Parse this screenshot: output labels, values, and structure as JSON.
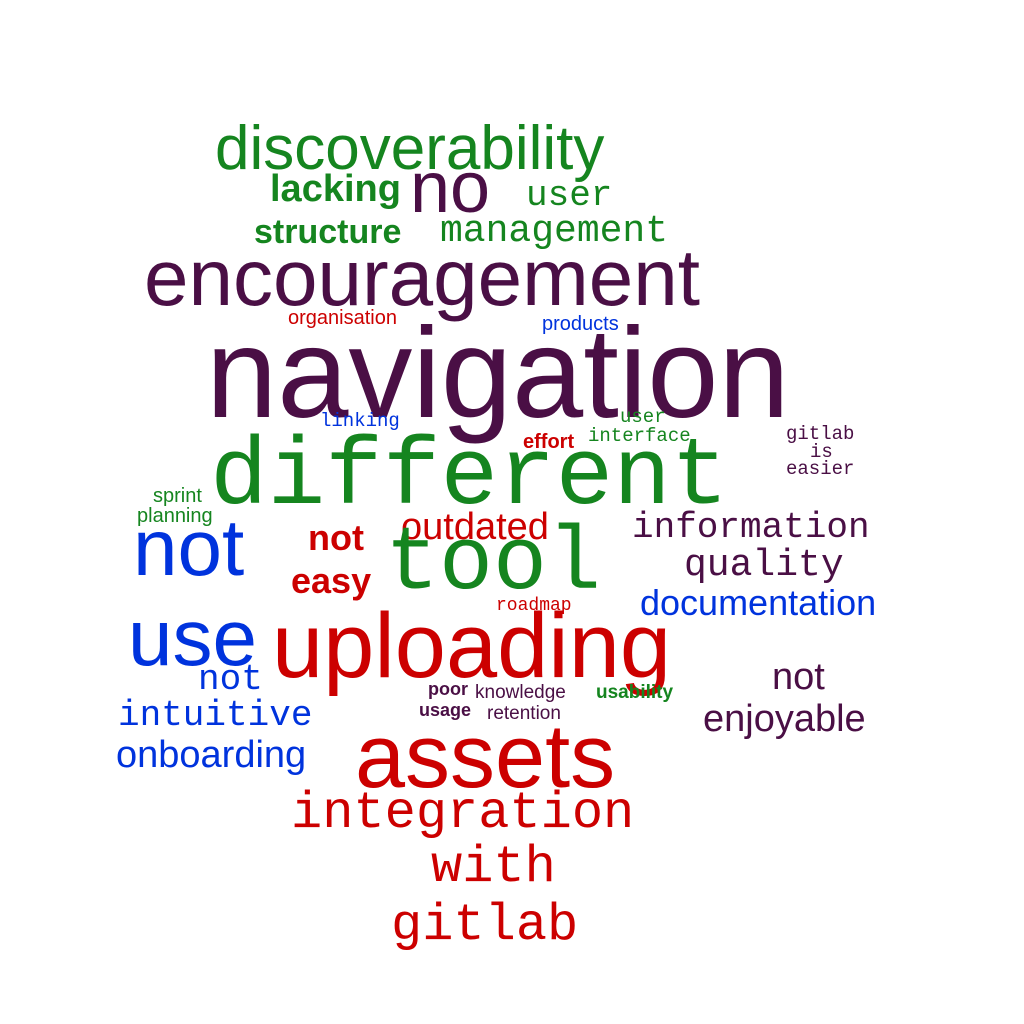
{
  "colors": {
    "purple": "#4a0f45",
    "green": "#15851f",
    "red": "#cc0000",
    "blue": "#0033dd"
  },
  "words": {
    "w01": "discoverability",
    "w02": "lacking",
    "w03": "no",
    "w04": "user",
    "w05": "structure",
    "w06": "management",
    "w07": "encouragement",
    "w08": "organisation",
    "w09": "products",
    "w10": "navigation",
    "w11": "linking",
    "w12": "user",
    "w13": "interface",
    "w14": "effort",
    "w15": "gitlab",
    "w16": "is",
    "w17": "easier",
    "w18": "different",
    "w19": "sprint",
    "w20": "planning",
    "w21": "not",
    "w22": "not",
    "w23": "outdated",
    "w24": "information",
    "w25": "tool",
    "w26": "easy",
    "w27": "quality",
    "w28": "roadmap",
    "w29": "documentation",
    "w30": "use",
    "w31": "uploading",
    "w32": "not",
    "w33": "not",
    "w34": "poor",
    "w35": "knowledge",
    "w36": "usability",
    "w37": "usage",
    "w38": "retention",
    "w39": "intuitive",
    "w40": "enjoyable",
    "w41": "onboarding",
    "w42": "assets",
    "w43": "integration",
    "w44": "with",
    "w45": "gitlab"
  }
}
